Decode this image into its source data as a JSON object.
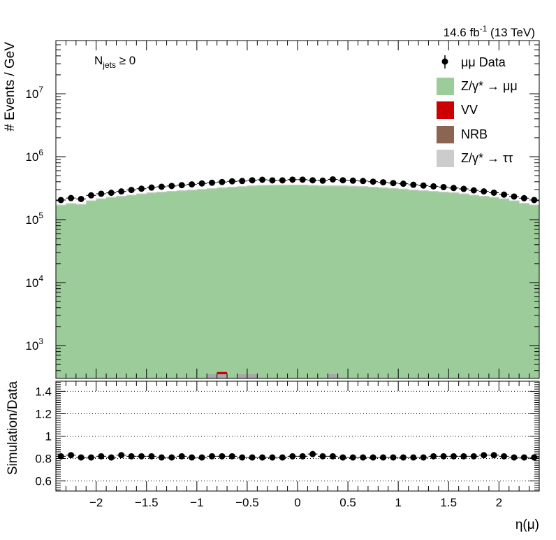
{
  "chart_data": [
    {
      "type": "bar",
      "scale": "log",
      "ylabel": "# Events / GeV",
      "ylim": [
        300,
        70000000
      ],
      "xlim": [
        -2.4,
        2.4
      ],
      "bin_width": 0.1,
      "annotation": {
        "njets_main": "N",
        "njets_sub": "jets",
        "njets_rest": " ≥ 0"
      },
      "lumi": {
        "pre": "14.6 fb",
        "sup": "-1",
        "post": " (13 TeV)"
      },
      "yticks": [
        {
          "value": 1000,
          "label": "10",
          "exp": "3"
        },
        {
          "value": 10000,
          "label": "10",
          "exp": "4"
        },
        {
          "value": 100000,
          "label": "10",
          "exp": "5"
        },
        {
          "value": 1000000,
          "label": "10",
          "exp": "6"
        },
        {
          "value": 10000000,
          "label": "10",
          "exp": "7"
        }
      ],
      "legend_placement": "top-right",
      "legend": [
        {
          "key": "data",
          "label": "μμ Data"
        },
        {
          "key": "dy_mumu",
          "label": "Z/γ* → μμ",
          "color": "#9ccc9a"
        },
        {
          "key": "vv",
          "label": "VV",
          "color": "#cc0000"
        },
        {
          "key": "nrb",
          "label": "NRB",
          "color": "#8c6452"
        },
        {
          "key": "dy_tautau",
          "label": "Z/γ* → ττ",
          "color": "#cccccc"
        }
      ],
      "series": [
        {
          "name": "Z/γ* → μμ",
          "color": "#9ccc9a",
          "values": [
            171000,
            181000,
            176000,
            200000,
            215000,
            227000,
            236000,
            246000,
            257000,
            268000,
            275000,
            283000,
            290000,
            296000,
            304000,
            312000,
            322000,
            330000,
            336000,
            345000,
            352000,
            353000,
            354000,
            356000,
            356000,
            351000,
            345000,
            345000,
            345000,
            341000,
            337000,
            330000,
            322000,
            315000,
            307000,
            296000,
            290000,
            283000,
            275000,
            268000,
            257000,
            246000,
            236000,
            227000,
            215000,
            200000,
            182000,
            172000
          ]
        },
        {
          "name": "Z/γ* → ττ",
          "color": "#cccccc",
          "values": [
            1500,
            1600,
            1600,
            1800,
            1900,
            2000,
            2100,
            2200,
            2300,
            2400,
            2500,
            2500,
            2600,
            2700,
            2700,
            2800,
            2900,
            3000,
            3000,
            3100,
            3100,
            3200,
            3200,
            3200,
            3200,
            3200,
            3100,
            3100,
            3100,
            3100,
            3000,
            3000,
            2900,
            2800,
            2700,
            2700,
            2600,
            2500,
            2500,
            2400,
            2300,
            2200,
            2100,
            2000,
            1900,
            1800,
            1600,
            1500
          ]
        },
        {
          "name": "VV",
          "color": "#cc0000",
          "values": [
            0,
            0,
            0,
            0,
            0,
            0,
            0,
            0,
            0,
            0,
            0,
            0,
            0,
            0,
            0,
            240,
            380,
            0,
            320,
            300,
            0,
            0,
            0,
            0,
            0,
            0,
            0,
            300,
            0,
            0,
            0,
            0,
            0,
            0,
            0,
            0,
            0,
            0,
            0,
            0,
            0,
            0,
            0,
            0,
            0,
            0,
            0,
            0
          ]
        },
        {
          "name": "NRB",
          "color": "#8c6452",
          "values": [
            0,
            0,
            0,
            0,
            0,
            0,
            0,
            0,
            0,
            0,
            0,
            0,
            0,
            0,
            0,
            0,
            0,
            0,
            0,
            0,
            0,
            0,
            0,
            0,
            0,
            0,
            0,
            0,
            0,
            0,
            0,
            0,
            0,
            0,
            0,
            0,
            0,
            0,
            0,
            0,
            0,
            0,
            0,
            0,
            0,
            0,
            0,
            0
          ]
        }
      ],
      "data": {
        "name": "μμ Data",
        "x": [
          -2.35,
          -2.25,
          -2.15,
          -2.05,
          -1.95,
          -1.85,
          -1.75,
          -1.65,
          -1.55,
          -1.45,
          -1.35,
          -1.25,
          -1.15,
          -1.05,
          -0.95,
          -0.85,
          -0.75,
          -0.65,
          -0.55,
          -0.45,
          -0.35,
          -0.25,
          -0.15,
          -0.05,
          0.05,
          0.15,
          0.25,
          0.35,
          0.45,
          0.55,
          0.65,
          0.75,
          0.85,
          0.95,
          1.05,
          1.15,
          1.25,
          1.35,
          1.45,
          1.55,
          1.65,
          1.75,
          1.85,
          1.95,
          2.05,
          2.15,
          2.25,
          2.35
        ],
        "values": [
          205000,
          220000,
          213000,
          243000,
          258000,
          267000,
          281000,
          296000,
          310000,
          323000,
          333000,
          343000,
          353000,
          363000,
          376000,
          386000,
          396000,
          406000,
          411000,
          422000,
          430000,
          421000,
          421000,
          432000,
          432000,
          422000,
          416000,
          436000,
          422000,
          416000,
          411000,
          401000,
          392000,
          381000,
          372000,
          358000,
          348000,
          338000,
          329000,
          318000,
          308000,
          292000,
          281000,
          268000,
          250000,
          233000,
          219000,
          205000
        ]
      }
    },
    {
      "type": "scatter",
      "ylabel": "Simulation/Data",
      "xlabel": "η(μ)",
      "xlim": [
        -2.4,
        2.4
      ],
      "ylim": [
        0.51,
        1.49
      ],
      "gridlines": [
        0.6,
        0.8,
        1,
        1.2,
        1.4
      ],
      "yticks": [
        "0.6",
        "0.8",
        "1",
        "1.2",
        "1.4"
      ],
      "xticks": [
        {
          "value": -2,
          "label": "−2"
        },
        {
          "value": -1.5,
          "label": "−1.5"
        },
        {
          "value": -1,
          "label": "−1"
        },
        {
          "value": -0.5,
          "label": "−0.5"
        },
        {
          "value": 0,
          "label": "0"
        },
        {
          "value": 0.5,
          "label": "0.5"
        },
        {
          "value": 1,
          "label": "1"
        },
        {
          "value": 1.5,
          "label": "1.5"
        },
        {
          "value": 2,
          "label": "2"
        }
      ],
      "series": [
        {
          "name": "ratio",
          "x": [
            -2.35,
            -2.25,
            -2.15,
            -2.05,
            -1.95,
            -1.85,
            -1.75,
            -1.65,
            -1.55,
            -1.45,
            -1.35,
            -1.25,
            -1.15,
            -1.05,
            -0.95,
            -0.85,
            -0.75,
            -0.65,
            -0.55,
            -0.45,
            -0.35,
            -0.25,
            -0.15,
            -0.05,
            0.05,
            0.15,
            0.25,
            0.35,
            0.45,
            0.55,
            0.65,
            0.75,
            0.85,
            0.95,
            1.05,
            1.15,
            1.25,
            1.35,
            1.45,
            1.55,
            1.65,
            1.75,
            1.85,
            1.95,
            2.05,
            2.15,
            2.25,
            2.35
          ],
          "values": [
            0.82,
            0.83,
            0.81,
            0.81,
            0.82,
            0.81,
            0.83,
            0.82,
            0.82,
            0.82,
            0.81,
            0.81,
            0.82,
            0.81,
            0.81,
            0.82,
            0.82,
            0.82,
            0.81,
            0.81,
            0.81,
            0.81,
            0.81,
            0.82,
            0.82,
            0.84,
            0.82,
            0.82,
            0.81,
            0.81,
            0.81,
            0.81,
            0.81,
            0.81,
            0.81,
            0.81,
            0.81,
            0.82,
            0.82,
            0.82,
            0.82,
            0.82,
            0.83,
            0.83,
            0.82,
            0.81,
            0.81,
            0.81
          ]
        }
      ]
    }
  ]
}
